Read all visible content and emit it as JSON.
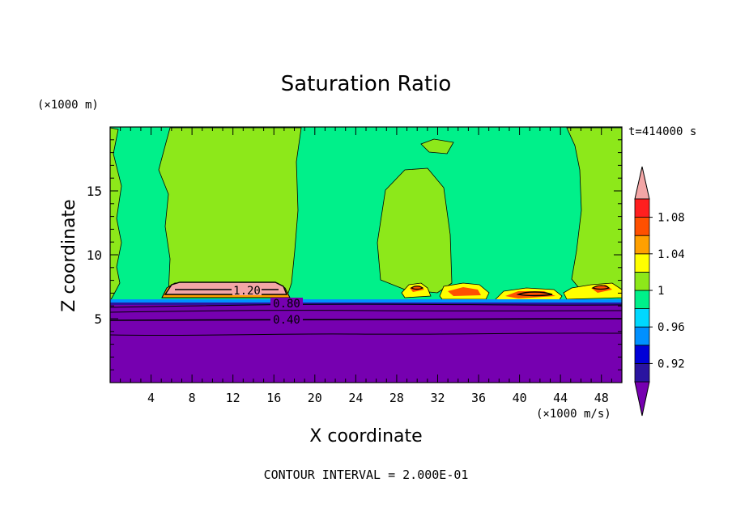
{
  "chart_data": {
    "type": "heatmap",
    "title": "Saturation Ratio",
    "xlabel": "X coordinate",
    "ylabel": "Z coordinate",
    "x_unit": "(×1000 m/s)",
    "y_unit": "(×1000 m)",
    "time_label": "t=414000 s",
    "footer": "CONTOUR INTERVAL = 2.000E-01",
    "xlim": [
      0,
      50
    ],
    "ylim": [
      0,
      20
    ],
    "x_ticks": [
      4,
      8,
      12,
      16,
      20,
      24,
      28,
      32,
      36,
      40,
      44,
      48
    ],
    "y_ticks": [
      5,
      10,
      15
    ],
    "x_tick_labels": [
      "4",
      "8",
      "12",
      "16",
      "20",
      "24",
      "28",
      "32",
      "36",
      "40",
      "44",
      "48"
    ],
    "y_tick_labels": [
      "5",
      "10",
      "15"
    ],
    "contour_labels": [
      {
        "text": "1.20",
        "x": 13.4,
        "z": 6.8
      },
      {
        "text": "0.80",
        "x": 17.0,
        "z": 5.9
      },
      {
        "text": "0.40",
        "x": 17.0,
        "z": 4.9
      }
    ],
    "colorbar": {
      "levels": [
        0.9,
        0.92,
        0.94,
        0.96,
        0.98,
        1.0,
        1.02,
        1.04,
        1.06,
        1.08,
        1.1
      ],
      "labels": [
        "0.92",
        "0.96",
        "1",
        "1.04",
        "1.08"
      ],
      "colors": [
        "#7600b0",
        "#2a14a0",
        "#0000d8",
        "#0090ff",
        "#00d8ff",
        "#00f08a",
        "#8de81a",
        "#ffff00",
        "#ffa000",
        "#ff5000",
        "#ff1f1f",
        "#f3a6a6"
      ],
      "under_color": "#7600b0",
      "over_color": "#f3a6a6"
    },
    "colors": {
      "below": "#7600b0",
      "near_one": "#00f08a",
      "slight_super": "#8de81a",
      "cap": "#f3a6a6"
    }
  }
}
